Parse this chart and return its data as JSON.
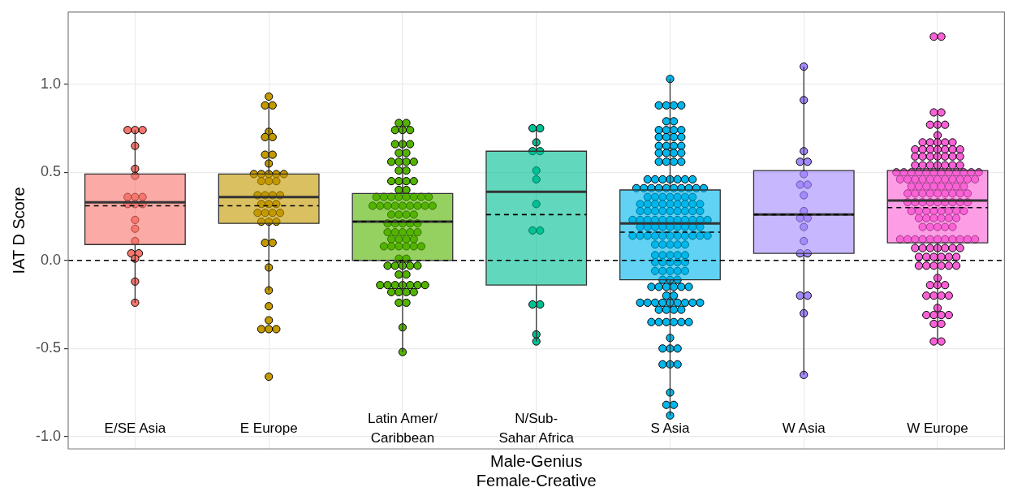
{
  "chart_data": {
    "type": "box",
    "xlabel": "Male-Genius\nFemale-Creative",
    "ylabel": "IAT D Score",
    "categories": [
      "E/SE Asia",
      "E Europe",
      "Latin Amer/\nCaribbean",
      "N/Sub-\nSahar Africa",
      "S Asia",
      "W Asia",
      "W Europe"
    ],
    "ylim": [
      -1.07,
      1.41
    ],
    "yticks": [
      {
        "value": -1,
        "label": "-1.0"
      },
      {
        "value": -0.5,
        "label": "-0.5"
      },
      {
        "value": 0,
        "label": "0.0"
      },
      {
        "value": 0.5,
        "label": "0.5"
      },
      {
        "value": 1,
        "label": "1.0"
      }
    ],
    "grid": true,
    "marker": "circle",
    "ref_lines": [
      {
        "axis": "y",
        "value": 0,
        "color": "#000000",
        "line_style": "dashed"
      }
    ],
    "series": [
      {
        "type": "box",
        "colors": [
          "#f8766d",
          "#c49a00",
          "#53b400",
          "#00c094",
          "#00b6eb",
          "#a58aff",
          "#fb61d7"
        ],
        "boxes": [
          {
            "low": -0.24,
            "q1": 0.09,
            "median": 0.33,
            "q3": 0.49,
            "high": 0.74,
            "mean": 0.31
          },
          {
            "low": -0.17,
            "q1": 0.21,
            "median": 0.36,
            "q3": 0.49,
            "high": 0.88,
            "mean": 0.31
          },
          {
            "low": -0.52,
            "q1": 0,
            "median": 0.22,
            "q3": 0.38,
            "high": 0.78,
            "mean": 0.22
          },
          {
            "low": -0.46,
            "q1": -0.14,
            "median": 0.39,
            "q3": 0.62,
            "high": 0.75,
            "mean": 0.26
          },
          {
            "low": -0.88,
            "q1": -0.11,
            "median": 0.21,
            "q3": 0.4,
            "high": 1.03,
            "mean": 0.16
          },
          {
            "low": -0.65,
            "q1": 0.04,
            "median": 0.26,
            "q3": 0.51,
            "high": 1.1,
            "mean": 0.26
          },
          {
            "low": -0.46,
            "q1": 0.1,
            "median": 0.34,
            "q3": 0.51,
            "high": 0.84,
            "mean": 0.3
          }
        ]
      },
      {
        "type": "scatter",
        "color": "#f8766d",
        "x": [
          "E/SE Asia",
          "E/SE Asia",
          "E/SE Asia",
          "E/SE Asia",
          "E/SE Asia",
          "E/SE Asia",
          "E/SE Asia",
          "E/SE Asia",
          "E/SE Asia",
          "E/SE Asia",
          "E/SE Asia",
          "E/SE Asia",
          "E/SE Asia",
          "E/SE Asia",
          "E/SE Asia",
          "E/SE Asia",
          "E/SE Asia",
          "E/SE Asia",
          "E/SE Asia",
          "E/SE Asia"
        ],
        "values": [
          0.74,
          0.74,
          0.74,
          0.65,
          0.52,
          0.48,
          0.36,
          0.36,
          0.36,
          0.32,
          0.32,
          0.32,
          0.23,
          0.18,
          0.11,
          0.04,
          0.04,
          0.01,
          -0.12,
          -0.24
        ]
      },
      {
        "type": "scatter",
        "color": "#c49a00",
        "x": [
          "E Europe",
          "E Europe",
          "E Europe",
          "E Europe",
          "E Europe",
          "E Europe",
          "E Europe",
          "E Europe",
          "E Europe",
          "E Europe",
          "E Europe",
          "E Europe",
          "E Europe",
          "E Europe",
          "E Europe",
          "E Europe",
          "E Europe",
          "E Europe",
          "E Europe",
          "E Europe",
          "E Europe",
          "E Europe",
          "E Europe",
          "E Europe",
          "E Europe",
          "E Europe",
          "E Europe",
          "E Europe",
          "E Europe",
          "E Europe",
          "E Europe",
          "E Europe",
          "E Europe",
          "E Europe",
          "E Europe",
          "E Europe",
          "E Europe",
          "E Europe",
          "E Europe",
          "E Europe",
          "E Europe"
        ],
        "values": [
          0.93,
          0.88,
          0.88,
          0.73,
          0.7,
          0.7,
          0.6,
          0.6,
          0.55,
          0.49,
          0.49,
          0.49,
          0.49,
          0.49,
          0.45,
          0.45,
          0.45,
          0.37,
          0.37,
          0.37,
          0.37,
          0.32,
          0.32,
          0.32,
          0.27,
          0.27,
          0.27,
          0.27,
          0.22,
          0.22,
          0.22,
          0.1,
          0.1,
          -0.04,
          -0.17,
          -0.26,
          -0.34,
          -0.39,
          -0.39,
          -0.39,
          -0.66
        ]
      },
      {
        "type": "scatter",
        "color": "#53b400",
        "x": [
          "Latin Amer/\nCaribbean",
          "Latin Amer/\nCaribbean",
          "Latin Amer/\nCaribbean",
          "Latin Amer/\nCaribbean",
          "Latin Amer/\nCaribbean",
          "Latin Amer/\nCaribbean",
          "Latin Amer/\nCaribbean",
          "Latin Amer/\nCaribbean",
          "Latin Amer/\nCaribbean",
          "Latin Amer/\nCaribbean",
          "Latin Amer/\nCaribbean",
          "Latin Amer/\nCaribbean",
          "Latin Amer/\nCaribbean",
          "Latin Amer/\nCaribbean",
          "Latin Amer/\nCaribbean",
          "Latin Amer/\nCaribbean",
          "Latin Amer/\nCaribbean",
          "Latin Amer/\nCaribbean",
          "Latin Amer/\nCaribbean",
          "Latin Amer/\nCaribbean",
          "Latin Amer/\nCaribbean",
          "Latin Amer/\nCaribbean",
          "Latin Amer/\nCaribbean",
          "Latin Amer/\nCaribbean",
          "Latin Amer/\nCaribbean",
          "Latin Amer/\nCaribbean",
          "Latin Amer/\nCaribbean",
          "Latin Amer/\nCaribbean",
          "Latin Amer/\nCaribbean",
          "Latin Amer/\nCaribbean",
          "Latin Amer/\nCaribbean",
          "Latin Amer/\nCaribbean",
          "Latin Amer/\nCaribbean",
          "Latin Amer/\nCaribbean",
          "Latin Amer/\nCaribbean",
          "Latin Amer/\nCaribbean",
          "Latin Amer/\nCaribbean",
          "Latin Amer/\nCaribbean",
          "Latin Amer/\nCaribbean",
          "Latin Amer/\nCaribbean",
          "Latin Amer/\nCaribbean",
          "Latin Amer/\nCaribbean",
          "Latin Amer/\nCaribbean",
          "Latin Amer/\nCaribbean",
          "Latin Amer/\nCaribbean",
          "Latin Amer/\nCaribbean",
          "Latin Amer/\nCaribbean",
          "Latin Amer/\nCaribbean",
          "Latin Amer/\nCaribbean",
          "Latin Amer/\nCaribbean",
          "Latin Amer/\nCaribbean",
          "Latin Amer/\nCaribbean",
          "Latin Amer/\nCaribbean",
          "Latin Amer/\nCaribbean",
          "Latin Amer/\nCaribbean",
          "Latin Amer/\nCaribbean",
          "Latin Amer/\nCaribbean",
          "Latin Amer/\nCaribbean",
          "Latin Amer/\nCaribbean",
          "Latin Amer/\nCaribbean",
          "Latin Amer/\nCaribbean",
          "Latin Amer/\nCaribbean",
          "Latin Amer/\nCaribbean",
          "Latin Amer/\nCaribbean",
          "Latin Amer/\nCaribbean",
          "Latin Amer/\nCaribbean",
          "Latin Amer/\nCaribbean",
          "Latin Amer/\nCaribbean",
          "Latin Amer/\nCaribbean",
          "Latin Amer/\nCaribbean",
          "Latin Amer/\nCaribbean",
          "Latin Amer/\nCaribbean",
          "Latin Amer/\nCaribbean",
          "Latin Amer/\nCaribbean",
          "Latin Amer/\nCaribbean",
          "Latin Amer/\nCaribbean",
          "Latin Amer/\nCaribbean",
          "Latin Amer/\nCaribbean",
          "Latin Amer/\nCaribbean",
          "Latin Amer/\nCaribbean",
          "Latin Amer/\nCaribbean",
          "Latin Amer/\nCaribbean",
          "Latin Amer/\nCaribbean",
          "Latin Amer/\nCaribbean",
          "Latin Amer/\nCaribbean",
          "Latin Amer/\nCaribbean",
          "Latin Amer/\nCaribbean"
        ],
        "values": [
          0.78,
          0.78,
          0.74,
          0.74,
          0.74,
          0.66,
          0.66,
          0.66,
          0.61,
          0.61,
          0.56,
          0.56,
          0.56,
          0.56,
          0.51,
          0.51,
          0.45,
          0.45,
          0.45,
          0.45,
          0.4,
          0.4,
          0.36,
          0.36,
          0.36,
          0.36,
          0.36,
          0.36,
          0.36,
          0.36,
          0.31,
          0.31,
          0.31,
          0.31,
          0.31,
          0.31,
          0.31,
          0.31,
          0.31,
          0.26,
          0.26,
          0.26,
          0.26,
          0.21,
          0.21,
          0.21,
          0.21,
          0.21,
          0.16,
          0.16,
          0.16,
          0.16,
          0.16,
          0.12,
          0.12,
          0.12,
          0.12,
          0.08,
          0.08,
          0.08,
          0.08,
          0.08,
          0.08,
          0.01,
          0.01,
          -0.03,
          -0.03,
          -0.03,
          -0.03,
          -0.03,
          -0.08,
          -0.08,
          -0.14,
          -0.14,
          -0.14,
          -0.14,
          -0.14,
          -0.14,
          -0.14,
          -0.18,
          -0.18,
          -0.18,
          -0.18,
          -0.24,
          -0.24,
          -0.38,
          -0.52
        ]
      },
      {
        "type": "scatter",
        "color": "#00c094",
        "x": [
          "N/Sub-\nSahar Africa",
          "N/Sub-\nSahar Africa",
          "N/Sub-\nSahar Africa",
          "N/Sub-\nSahar Africa",
          "N/Sub-\nSahar Africa",
          "N/Sub-\nSahar Africa",
          "N/Sub-\nSahar Africa",
          "N/Sub-\nSahar Africa",
          "N/Sub-\nSahar Africa",
          "N/Sub-\nSahar Africa",
          "N/Sub-\nSahar Africa",
          "N/Sub-\nSahar Africa",
          "N/Sub-\nSahar Africa",
          "N/Sub-\nSahar Africa"
        ],
        "values": [
          0.75,
          0.75,
          0.67,
          0.62,
          0.62,
          0.51,
          0.46,
          0.32,
          0.17,
          0.17,
          -0.25,
          -0.25,
          -0.42,
          -0.46
        ]
      },
      {
        "type": "scatter",
        "color": "#00b6eb",
        "x": [
          "S Asia",
          "S Asia",
          "S Asia",
          "S Asia",
          "S Asia",
          "S Asia",
          "S Asia",
          "S Asia",
          "S Asia",
          "S Asia",
          "S Asia",
          "S Asia",
          "S Asia",
          "S Asia",
          "S Asia",
          "S Asia",
          "S Asia",
          "S Asia",
          "S Asia",
          "S Asia",
          "S Asia",
          "S Asia",
          "S Asia",
          "S Asia",
          "S Asia",
          "S Asia",
          "S Asia",
          "S Asia",
          "S Asia",
          "S Asia",
          "S Asia",
          "S Asia",
          "S Asia",
          "S Asia",
          "S Asia",
          "S Asia",
          "S Asia",
          "S Asia",
          "S Asia",
          "S Asia",
          "S Asia",
          "S Asia",
          "S Asia",
          "S Asia",
          "S Asia",
          "S Asia",
          "S Asia",
          "S Asia",
          "S Asia",
          "S Asia",
          "S Asia",
          "S Asia",
          "S Asia",
          "S Asia",
          "S Asia",
          "S Asia",
          "S Asia",
          "S Asia",
          "S Asia",
          "S Asia",
          "S Asia",
          "S Asia",
          "S Asia",
          "S Asia",
          "S Asia",
          "S Asia",
          "S Asia",
          "S Asia",
          "S Asia",
          "S Asia",
          "S Asia",
          "S Asia",
          "S Asia",
          "S Asia",
          "S Asia",
          "S Asia",
          "S Asia",
          "S Asia",
          "S Asia",
          "S Asia",
          "S Asia",
          "S Asia",
          "S Asia",
          "S Asia",
          "S Asia",
          "S Asia",
          "S Asia",
          "S Asia",
          "S Asia",
          "S Asia",
          "S Asia",
          "S Asia",
          "S Asia",
          "S Asia",
          "S Asia",
          "S Asia",
          "S Asia",
          "S Asia",
          "S Asia",
          "S Asia",
          "S Asia",
          "S Asia",
          "S Asia",
          "S Asia",
          "S Asia",
          "S Asia",
          "S Asia",
          "S Asia",
          "S Asia",
          "S Asia",
          "S Asia",
          "S Asia",
          "S Asia",
          "S Asia",
          "S Asia",
          "S Asia",
          "S Asia",
          "S Asia",
          "S Asia",
          "S Asia",
          "S Asia",
          "S Asia",
          "S Asia",
          "S Asia",
          "S Asia",
          "S Asia",
          "S Asia",
          "S Asia",
          "S Asia",
          "S Asia",
          "S Asia",
          "S Asia",
          "S Asia",
          "S Asia",
          "S Asia",
          "S Asia",
          "S Asia",
          "S Asia",
          "S Asia",
          "S Asia",
          "S Asia",
          "S Asia",
          "S Asia",
          "S Asia",
          "S Asia",
          "S Asia",
          "S Asia",
          "S Asia",
          "S Asia",
          "S Asia",
          "S Asia",
          "S Asia",
          "S Asia",
          "S Asia",
          "S Asia",
          "S Asia",
          "S Asia",
          "S Asia",
          "S Asia",
          "S Asia",
          "S Asia"
        ],
        "values": [
          1.03,
          0.88,
          0.88,
          0.88,
          0.88,
          0.79,
          0.79,
          0.74,
          0.74,
          0.74,
          0.74,
          0.7,
          0.7,
          0.7,
          0.7,
          0.65,
          0.65,
          0.65,
          0.65,
          0.61,
          0.61,
          0.61,
          0.61,
          0.56,
          0.56,
          0.56,
          0.56,
          0.46,
          0.46,
          0.46,
          0.46,
          0.46,
          0.46,
          0.46,
          0.41,
          0.41,
          0.41,
          0.41,
          0.41,
          0.41,
          0.41,
          0.41,
          0.41,
          0.41,
          0.36,
          0.36,
          0.36,
          0.36,
          0.36,
          0.36,
          0.36,
          0.32,
          0.32,
          0.32,
          0.32,
          0.32,
          0.32,
          0.32,
          0.32,
          0.32,
          0.28,
          0.28,
          0.28,
          0.28,
          0.28,
          0.28,
          0.28,
          0.28,
          0.28,
          0.23,
          0.23,
          0.23,
          0.23,
          0.23,
          0.23,
          0.23,
          0.23,
          0.23,
          0.23,
          0.23,
          0.19,
          0.19,
          0.19,
          0.19,
          0.19,
          0.19,
          0.19,
          0.19,
          0.19,
          0.14,
          0.14,
          0.14,
          0.14,
          0.14,
          0.14,
          0.14,
          0.14,
          0.14,
          0.14,
          0.14,
          0.09,
          0.09,
          0.09,
          0.09,
          0.09,
          0.03,
          0.03,
          0.03,
          0.03,
          0.03,
          -0.01,
          -0.01,
          -0.01,
          -0.01,
          -0.01,
          -0.06,
          -0.06,
          -0.06,
          -0.06,
          -0.06,
          -0.11,
          -0.11,
          -0.11,
          -0.15,
          -0.15,
          -0.15,
          -0.15,
          -0.15,
          -0.15,
          -0.2,
          -0.2,
          -0.24,
          -0.24,
          -0.24,
          -0.24,
          -0.24,
          -0.24,
          -0.24,
          -0.24,
          -0.24,
          -0.28,
          -0.28,
          -0.28,
          -0.28,
          -0.35,
          -0.35,
          -0.35,
          -0.35,
          -0.35,
          -0.35,
          -0.44,
          -0.5,
          -0.5,
          -0.5,
          -0.59,
          -0.59,
          -0.59,
          -0.75,
          -0.82,
          -0.82,
          -0.88
        ]
      },
      {
        "type": "scatter",
        "color": "#a58aff",
        "x": [
          "W Asia",
          "W Asia",
          "W Asia",
          "W Asia",
          "W Asia",
          "W Asia",
          "W Asia",
          "W Asia",
          "W Asia",
          "W Asia",
          "W Asia",
          "W Asia",
          "W Asia",
          "W Asia",
          "W Asia",
          "W Asia",
          "W Asia",
          "W Asia",
          "W Asia",
          "W Asia"
        ],
        "values": [
          1.1,
          0.91,
          0.62,
          0.56,
          0.56,
          0.49,
          0.43,
          0.43,
          0.37,
          0.28,
          0.24,
          0.24,
          0.19,
          0.11,
          0.04,
          0.04,
          -0.2,
          -0.2,
          -0.3,
          -0.65
        ]
      },
      {
        "type": "scatter",
        "color": "#fb61d7",
        "x": [
          "W Europe",
          "W Europe",
          "W Europe",
          "W Europe",
          "W Europe",
          "W Europe",
          "W Europe",
          "W Europe",
          "W Europe",
          "W Europe",
          "W Europe",
          "W Europe",
          "W Europe",
          "W Europe",
          "W Europe",
          "W Europe",
          "W Europe",
          "W Europe",
          "W Europe",
          "W Europe",
          "W Europe",
          "W Europe",
          "W Europe",
          "W Europe",
          "W Europe",
          "W Europe",
          "W Europe",
          "W Europe",
          "W Europe",
          "W Europe",
          "W Europe",
          "W Europe",
          "W Europe",
          "W Europe",
          "W Europe",
          "W Europe",
          "W Europe",
          "W Europe",
          "W Europe",
          "W Europe",
          "W Europe",
          "W Europe",
          "W Europe",
          "W Europe",
          "W Europe",
          "W Europe",
          "W Europe",
          "W Europe",
          "W Europe",
          "W Europe",
          "W Europe",
          "W Europe",
          "W Europe",
          "W Europe",
          "W Europe",
          "W Europe",
          "W Europe",
          "W Europe",
          "W Europe",
          "W Europe",
          "W Europe",
          "W Europe",
          "W Europe",
          "W Europe",
          "W Europe",
          "W Europe",
          "W Europe",
          "W Europe",
          "W Europe",
          "W Europe",
          "W Europe",
          "W Europe",
          "W Europe",
          "W Europe",
          "W Europe",
          "W Europe",
          "W Europe",
          "W Europe",
          "W Europe",
          "W Europe",
          "W Europe",
          "W Europe",
          "W Europe",
          "W Europe",
          "W Europe",
          "W Europe",
          "W Europe",
          "W Europe",
          "W Europe",
          "W Europe",
          "W Europe",
          "W Europe",
          "W Europe",
          "W Europe",
          "W Europe",
          "W Europe",
          "W Europe",
          "W Europe",
          "W Europe",
          "W Europe",
          "W Europe",
          "W Europe",
          "W Europe",
          "W Europe",
          "W Europe",
          "W Europe",
          "W Europe",
          "W Europe",
          "W Europe",
          "W Europe",
          "W Europe",
          "W Europe",
          "W Europe",
          "W Europe",
          "W Europe",
          "W Europe",
          "W Europe",
          "W Europe",
          "W Europe",
          "W Europe",
          "W Europe",
          "W Europe",
          "W Europe",
          "W Europe",
          "W Europe",
          "W Europe",
          "W Europe",
          "W Europe",
          "W Europe",
          "W Europe",
          "W Europe",
          "W Europe",
          "W Europe",
          "W Europe",
          "W Europe",
          "W Europe",
          "W Europe",
          "W Europe",
          "W Europe",
          "W Europe",
          "W Europe",
          "W Europe",
          "W Europe",
          "W Europe",
          "W Europe",
          "W Europe",
          "W Europe",
          "W Europe",
          "W Europe"
        ],
        "values": [
          1.27,
          1.27,
          0.84,
          0.84,
          0.77,
          0.77,
          0.77,
          0.71,
          0.67,
          0.67,
          0.67,
          0.67,
          0.67,
          0.63,
          0.63,
          0.63,
          0.63,
          0.63,
          0.63,
          0.63,
          0.59,
          0.59,
          0.59,
          0.59,
          0.59,
          0.59,
          0.59,
          0.54,
          0.54,
          0.54,
          0.54,
          0.54,
          0.54,
          0.54,
          0.5,
          0.5,
          0.5,
          0.5,
          0.5,
          0.5,
          0.5,
          0.5,
          0.5,
          0.5,
          0.5,
          0.5,
          0.46,
          0.46,
          0.46,
          0.46,
          0.46,
          0.46,
          0.46,
          0.46,
          0.46,
          0.46,
          0.46,
          0.42,
          0.42,
          0.42,
          0.42,
          0.42,
          0.42,
          0.42,
          0.42,
          0.38,
          0.38,
          0.38,
          0.38,
          0.38,
          0.38,
          0.38,
          0.38,
          0.38,
          0.33,
          0.33,
          0.33,
          0.33,
          0.33,
          0.33,
          0.33,
          0.33,
          0.33,
          0.28,
          0.28,
          0.28,
          0.28,
          0.28,
          0.28,
          0.28,
          0.28,
          0.24,
          0.24,
          0.24,
          0.24,
          0.24,
          0.24,
          0.19,
          0.19,
          0.19,
          0.19,
          0.19,
          0.12,
          0.12,
          0.12,
          0.12,
          0.12,
          0.12,
          0.12,
          0.12,
          0.12,
          0.12,
          0.12,
          0.07,
          0.07,
          0.07,
          0.07,
          0.07,
          0.07,
          0.07,
          0.02,
          0.02,
          0.02,
          0.02,
          0.02,
          0.02,
          -0.03,
          -0.03,
          -0.03,
          -0.03,
          -0.03,
          -0.03,
          -0.1,
          -0.14,
          -0.14,
          -0.14,
          -0.2,
          -0.2,
          -0.2,
          -0.2,
          -0.27,
          -0.31,
          -0.31,
          -0.31,
          -0.31,
          -0.36,
          -0.36,
          -0.46,
          -0.46
        ]
      }
    ]
  }
}
